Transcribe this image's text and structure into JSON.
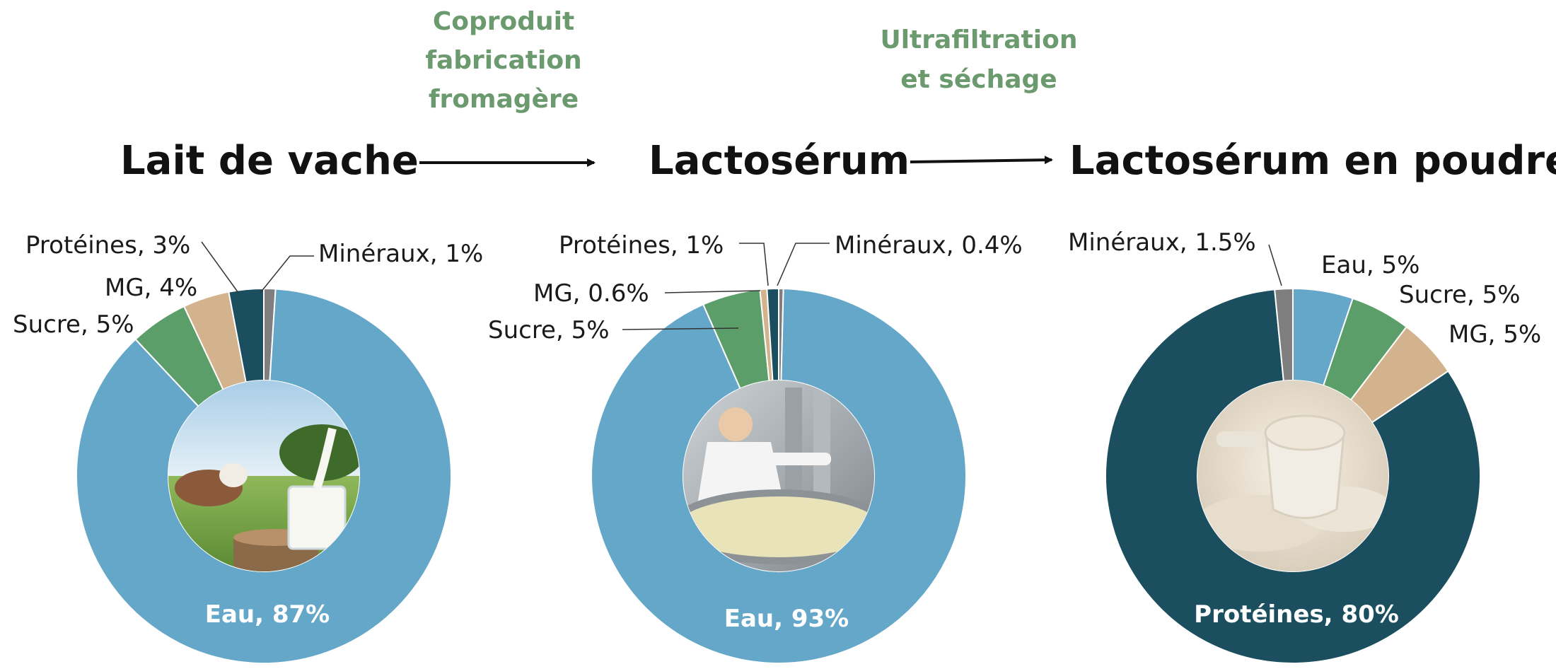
{
  "flow": {
    "stage_titles": [
      "Lait de vache",
      "Lactosérum",
      "Lactosérum en poudre"
    ],
    "process_labels": [
      [
        "Coproduit",
        "fabrication",
        "fromagère"
      ],
      [
        "Ultrafiltration",
        "et séchage"
      ]
    ]
  },
  "images": [
    "cow-milk-photo",
    "cheese-vat-photo",
    "whey-powder-scoop-photo"
  ],
  "colors": {
    "Eau": "#64a7c8",
    "Sucre": "#5c9e6a",
    "MG": "#d2b38d",
    "Protéines": "#1b4f60",
    "Minéraux": "#7f7f7f"
  },
  "chart_data": [
    {
      "type": "pie",
      "variant": "donut",
      "title": "Lait de vache",
      "slices": [
        {
          "name": "Eau",
          "value": 87,
          "label": "Eau, 87%"
        },
        {
          "name": "Sucre",
          "value": 5,
          "label": "Sucre, 5%"
        },
        {
          "name": "MG",
          "value": 4,
          "label": "MG, 4%"
        },
        {
          "name": "Protéines",
          "value": 3,
          "label": "Protéines, 3%"
        },
        {
          "name": "Minéraux",
          "value": 1,
          "label": "Minéraux, 1%"
        }
      ]
    },
    {
      "type": "pie",
      "variant": "donut",
      "title": "Lactosérum",
      "slices": [
        {
          "name": "Eau",
          "value": 93,
          "label": "Eau, 93%"
        },
        {
          "name": "Sucre",
          "value": 5,
          "label": "Sucre, 5%"
        },
        {
          "name": "MG",
          "value": 0.6,
          "label": "MG, 0.6%"
        },
        {
          "name": "Protéines",
          "value": 1,
          "label": "Protéines, 1%"
        },
        {
          "name": "Minéraux",
          "value": 0.4,
          "label": "Minéraux, 0.4%"
        }
      ]
    },
    {
      "type": "pie",
      "variant": "donut",
      "title": "Lactosérum en poudre",
      "slices": [
        {
          "name": "Eau",
          "value": 5,
          "label": "Eau, 5%"
        },
        {
          "name": "Sucre",
          "value": 5,
          "label": "Sucre, 5%"
        },
        {
          "name": "MG",
          "value": 5,
          "label": "MG, 5%"
        },
        {
          "name": "Protéines",
          "value": 80,
          "label": "Protéines, 80%"
        },
        {
          "name": "Minéraux",
          "value": 1.5,
          "label": "Minéraux, 1.5%"
        }
      ]
    }
  ]
}
